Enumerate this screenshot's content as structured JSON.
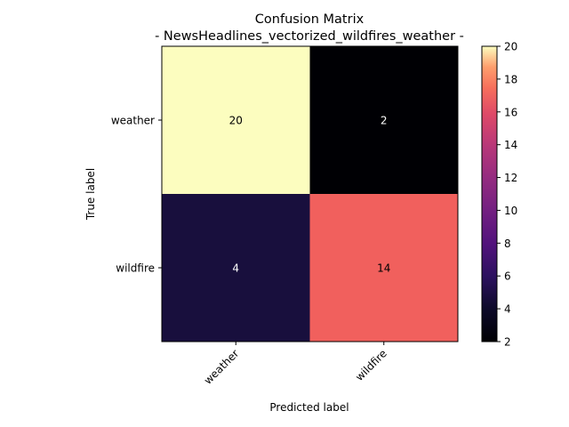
{
  "chart_data": {
    "type": "heatmap",
    "title": "Confusion Matrix",
    "subtitle": "- NewsHeadlines_vectorized_wildfires_weather -",
    "xlabel": "Predicted label",
    "ylabel": "True label",
    "x_categories": [
      "weather",
      "wildfire"
    ],
    "y_categories": [
      "weather",
      "wildfire"
    ],
    "values": [
      [
        20,
        2
      ],
      [
        4,
        14
      ]
    ],
    "colormap": "magma",
    "colorbar_range": [
      2,
      20
    ],
    "colorbar_ticks": [
      "2",
      "4",
      "6",
      "8",
      "10",
      "12",
      "14",
      "16",
      "18",
      "20"
    ],
    "cell_colors": [
      [
        "#fcfdbf",
        "#000004"
      ],
      [
        "#180f3d",
        "#f1605d"
      ]
    ],
    "cell_text_colors": [
      [
        "#000000",
        "#ffffff"
      ],
      [
        "#ffffff",
        "#000000"
      ]
    ]
  }
}
